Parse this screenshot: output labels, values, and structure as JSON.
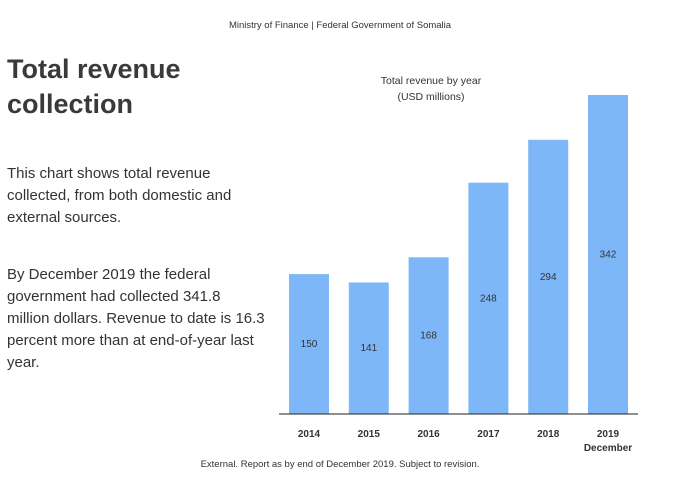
{
  "header": {
    "text": "Ministry of Finance | Federal Government of Somalia"
  },
  "title": "Total revenue collection",
  "paragraphs": {
    "p1": "This chart shows total revenue collected, from both domestic and external sources.",
    "p2": "By December 2019 the federal government had collected 341.8 million dollars. Revenue to date is 16.3 percent more than at end-of-year last year."
  },
  "footer": {
    "text": "External. Report as by end of December  2019. Subject to revision."
  },
  "colors": {
    "bar": "#7db7f7",
    "axis": "#222222"
  },
  "chart_data": {
    "type": "bar",
    "title": "Total revenue by year",
    "subtitle": "(USD millions)",
    "categories": [
      "2014",
      "2015",
      "2016",
      "2017",
      "2018",
      "2019"
    ],
    "category_sublabels": [
      "",
      "",
      "",
      "",
      "",
      "December"
    ],
    "values": [
      150,
      141,
      168,
      248,
      294,
      342
    ],
    "data_labels": [
      "150",
      "141",
      "168",
      "248",
      "294",
      "342"
    ],
    "ylim": [
      0,
      342
    ],
    "grid": false,
    "legend": "none"
  }
}
